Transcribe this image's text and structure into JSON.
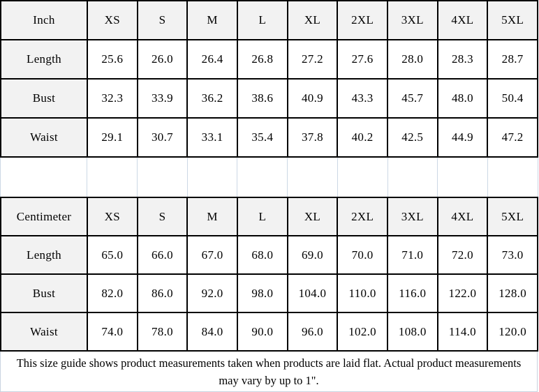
{
  "colors": {
    "header_bg": "#f2f2f2",
    "cell_bg": "#ffffff",
    "table_border": "#000000",
    "gridline": "#ccd8e5",
    "note_border": "#c9d3e0",
    "text": "#000000"
  },
  "chart_data": [
    {
      "type": "table",
      "unit": "Inch",
      "columns": [
        "Inch",
        "XS",
        "S",
        "M",
        "L",
        "XL",
        "2XL",
        "3XL",
        "4XL",
        "5XL"
      ],
      "rows": [
        [
          "Length",
          "25.6",
          "26.0",
          "26.4",
          "26.8",
          "27.2",
          "27.6",
          "28.0",
          "28.3",
          "28.7"
        ],
        [
          "Bust",
          "32.3",
          "33.9",
          "36.2",
          "38.6",
          "40.9",
          "43.3",
          "45.7",
          "48.0",
          "50.4"
        ],
        [
          "Waist",
          "29.1",
          "30.7",
          "33.1",
          "35.4",
          "37.8",
          "40.2",
          "42.5",
          "44.9",
          "47.2"
        ]
      ]
    },
    {
      "type": "table",
      "unit": "Centimeter",
      "columns": [
        "Centimeter",
        "XS",
        "S",
        "M",
        "L",
        "XL",
        "2XL",
        "3XL",
        "4XL",
        "5XL"
      ],
      "rows": [
        [
          "Length",
          "65.0",
          "66.0",
          "67.0",
          "68.0",
          "69.0",
          "70.0",
          "71.0",
          "72.0",
          "73.0"
        ],
        [
          "Bust",
          "82.0",
          "86.0",
          "92.0",
          "98.0",
          "104.0",
          "110.0",
          "116.0",
          "122.0",
          "128.0"
        ],
        [
          "Waist",
          "74.0",
          "78.0",
          "84.0",
          "90.0",
          "96.0",
          "102.0",
          "108.0",
          "114.0",
          "120.0"
        ]
      ]
    }
  ],
  "footer": {
    "note": "This size guide shows product measurements taken when products are laid flat. Actual product measurements may vary by up to 1\"."
  }
}
